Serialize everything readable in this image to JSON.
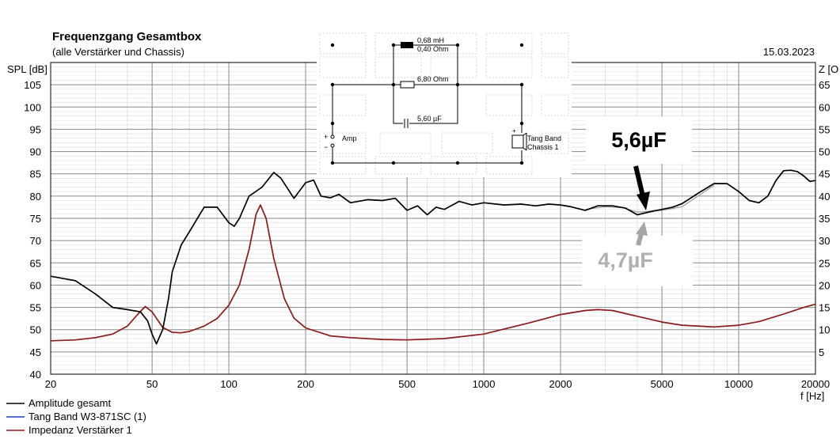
{
  "chart_data": {
    "type": "line",
    "title": "Frequenzgang Gesamtbox",
    "subtitle": "(alle Verstärker und Chassis)",
    "date": "15.03.2023",
    "ylabel": "SPL [dB]",
    "ylabel_right": "Z [O",
    "xlabel": "f [Hz]",
    "x_scale": "log",
    "xlim": [
      20,
      20000
    ],
    "ylim": [
      40,
      110
    ],
    "ylim_right": [
      0,
      70
    ],
    "x_ticks": [
      20,
      50,
      100,
      200,
      500,
      1000,
      2000,
      5000,
      10000,
      20000
    ],
    "y_ticks": [
      40,
      45,
      50,
      55,
      60,
      65,
      70,
      75,
      80,
      85,
      90,
      95,
      100,
      105
    ],
    "y_ticks_right": [
      5,
      10,
      15,
      20,
      25,
      30,
      35,
      40,
      45,
      50,
      55,
      60,
      65
    ],
    "grid": true,
    "legend_position": "bottom-left",
    "series": [
      {
        "name": "Amplitude gesamt",
        "color": "#000000",
        "axis": "left",
        "x": [
          20,
          25,
          30,
          35,
          40,
          45,
          48,
          50,
          52,
          55,
          58,
          60,
          65,
          70,
          80,
          90,
          100,
          105,
          110,
          120,
          135,
          150,
          160,
          180,
          200,
          215,
          230,
          250,
          270,
          300,
          350,
          400,
          450,
          500,
          550,
          600,
          650,
          700,
          800,
          900,
          1000,
          1200,
          1400,
          1600,
          1800,
          2000,
          2200,
          2500,
          2800,
          3200,
          3600,
          4000,
          4300,
          4600,
          5000,
          5500,
          6000,
          7000,
          8000,
          9000,
          10000,
          11000,
          12000,
          13000,
          14000,
          15000,
          16000,
          17000,
          18000,
          19000,
          20000
        ],
        "y": [
          62,
          61,
          58,
          55,
          54.5,
          54,
          52,
          49,
          46.8,
          50,
          57,
          63,
          69,
          72,
          77.5,
          77.5,
          74,
          73.2,
          75,
          80,
          82,
          85.3,
          84,
          79.5,
          83,
          83.6,
          80,
          79.6,
          80.4,
          78.5,
          79.2,
          79,
          79.5,
          76.8,
          77.8,
          75.8,
          77.5,
          77,
          78.8,
          78,
          78.5,
          78,
          78.2,
          77.8,
          78.2,
          78,
          77.6,
          76.8,
          77.8,
          77.8,
          77.3,
          75.8,
          76.2,
          76.6,
          77,
          77.5,
          78.3,
          80.8,
          82.8,
          82.8,
          81,
          79,
          78.5,
          80,
          83.5,
          85.7,
          85.8,
          85.5,
          84.5,
          83.3,
          83.5
        ]
      },
      {
        "name": "Tang Band W3-871SC  (1)",
        "color": "#1f3fbf",
        "axis": "left",
        "x": [],
        "y": []
      },
      {
        "name": "Impedanz Verstärker 1",
        "color": "#8b1a1a",
        "axis": "right",
        "x": [
          20,
          25,
          30,
          35,
          40,
          44,
          47,
          50,
          55,
          60,
          65,
          70,
          80,
          90,
          100,
          110,
          120,
          128,
          133,
          140,
          150,
          165,
          180,
          200,
          250,
          300,
          400,
          500,
          700,
          1000,
          1500,
          2000,
          2500,
          2800,
          3200,
          4000,
          5000,
          6000,
          8000,
          10000,
          12000,
          15000,
          18000,
          20000
        ],
        "y": [
          7.5,
          7.7,
          8.2,
          9,
          10.8,
          13.5,
          15.2,
          14,
          10.5,
          9.4,
          9.3,
          9.6,
          10.8,
          12.5,
          15.5,
          20,
          28,
          36,
          38,
          35,
          26,
          17,
          12.6,
          10.4,
          8.6,
          8.2,
          7.8,
          7.7,
          8,
          9,
          11.5,
          13.4,
          14.3,
          14.5,
          14.3,
          13,
          11.7,
          11,
          10.6,
          11,
          11.8,
          13.5,
          15,
          15.7
        ]
      },
      {
        "name": "4,7µF",
        "color": "#9a9a9a",
        "axis": "left",
        "x": [
          2500,
          3000,
          3500,
          4000,
          4300,
          4600,
          5000,
          6000,
          7000,
          8000
        ],
        "y": [
          77.0,
          77.6,
          77.4,
          76.4,
          76.5,
          76.7,
          76.8,
          77.6,
          80.2,
          82.4
        ]
      }
    ],
    "annotations": [
      {
        "text": "5,6µF",
        "color": "#000000"
      },
      {
        "text": "4,7µF",
        "color": "#b0b0b0"
      }
    ]
  },
  "schematic": {
    "inductor_label_1": "0,68 mH",
    "inductor_label_2": "0,40 Ohm",
    "resistor_label": "6,80 Ohm",
    "capacitor_label": "5,60 µF",
    "amp_label": "Amp",
    "plus_sign": "+",
    "minus_sign": "−",
    "driver_label_1": "Tang Band",
    "driver_label_2": "Chassis 1"
  }
}
